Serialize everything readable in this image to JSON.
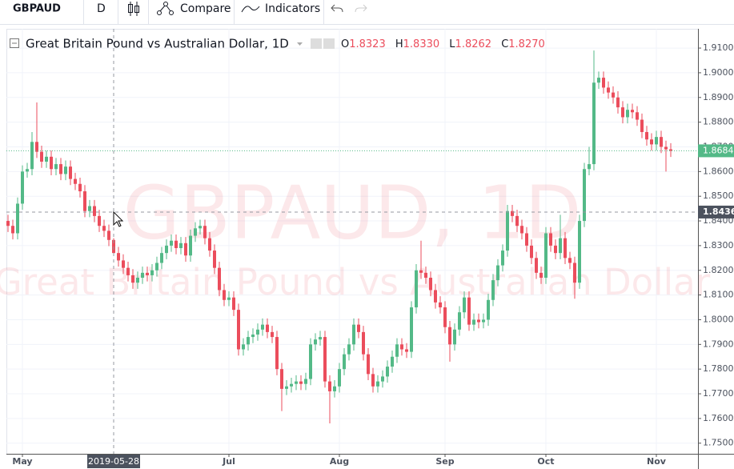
{
  "toolbar": {
    "symbol": "GBPAUD",
    "interval": "D",
    "compare": "Compare",
    "indicators": "Indicators"
  },
  "legend": {
    "title": "Great Britain Pound vs Australian Dollar, 1D",
    "open_label": "O",
    "open": "1.8323",
    "high_label": "H",
    "high": "1.8330",
    "low_label": "L",
    "low": "1.8262",
    "close_label": "C",
    "close": "1.8270"
  },
  "watermark": {
    "line1": "GBPAUD, 1D",
    "line2": "Great Britain Pound vs Australian Dollar"
  },
  "chart_data": {
    "type": "candlestick",
    "x": [
      "2019-04-26",
      "2019-04-29",
      "2019-04-30",
      "2019-05-01",
      "2019-05-02",
      "2019-05-03",
      "2019-05-06",
      "2019-05-07",
      "2019-05-08",
      "2019-05-09",
      "2019-05-10",
      "2019-05-13",
      "2019-05-14",
      "2019-05-15",
      "2019-05-16",
      "2019-05-17",
      "2019-05-20",
      "2019-05-21",
      "2019-05-22",
      "2019-05-23",
      "2019-05-24",
      "2019-05-27",
      "2019-05-28",
      "2019-05-29",
      "2019-05-30",
      "2019-05-31",
      "2019-06-03",
      "2019-06-04",
      "2019-06-05",
      "2019-06-06",
      "2019-06-07",
      "2019-06-10",
      "2019-06-11",
      "2019-06-12",
      "2019-06-13",
      "2019-06-14",
      "2019-06-17",
      "2019-06-18",
      "2019-06-19",
      "2019-06-20",
      "2019-06-21",
      "2019-06-24",
      "2019-06-25",
      "2019-06-26",
      "2019-06-27",
      "2019-06-28",
      "2019-07-01",
      "2019-07-02",
      "2019-07-03",
      "2019-07-04",
      "2019-07-05",
      "2019-07-08",
      "2019-07-09",
      "2019-07-10",
      "2019-07-11",
      "2019-07-12",
      "2019-07-15",
      "2019-07-16",
      "2019-07-17",
      "2019-07-18",
      "2019-07-19",
      "2019-07-22",
      "2019-07-23",
      "2019-07-24",
      "2019-07-25",
      "2019-07-26",
      "2019-07-29",
      "2019-07-30",
      "2019-07-31",
      "2019-08-01",
      "2019-08-02",
      "2019-08-05",
      "2019-08-06",
      "2019-08-07",
      "2019-08-08",
      "2019-08-09",
      "2019-08-12",
      "2019-08-13",
      "2019-08-14",
      "2019-08-15",
      "2019-08-16",
      "2019-08-19",
      "2019-08-20",
      "2019-08-21",
      "2019-08-22",
      "2019-08-23",
      "2019-08-26",
      "2019-08-27",
      "2019-08-28",
      "2019-08-29",
      "2019-08-30",
      "2019-09-02",
      "2019-09-03",
      "2019-09-04",
      "2019-09-05",
      "2019-09-06",
      "2019-09-09",
      "2019-09-10",
      "2019-09-11",
      "2019-09-12",
      "2019-09-13",
      "2019-09-16",
      "2019-09-17",
      "2019-09-18",
      "2019-09-19",
      "2019-09-20",
      "2019-09-23",
      "2019-09-24",
      "2019-09-25",
      "2019-09-26",
      "2019-09-27",
      "2019-09-30",
      "2019-10-01",
      "2019-10-02",
      "2019-10-03",
      "2019-10-04",
      "2019-10-07",
      "2019-10-08",
      "2019-10-09",
      "2019-10-10",
      "2019-10-11",
      "2019-10-14",
      "2019-10-15",
      "2019-10-16",
      "2019-10-17",
      "2019-10-18",
      "2019-10-21",
      "2019-10-22",
      "2019-10-23",
      "2019-10-24",
      "2019-10-25",
      "2019-10-28",
      "2019-10-29",
      "2019-10-30",
      "2019-10-31",
      "2019-11-01",
      "2019-11-04",
      "2019-11-05",
      "2019-11-06"
    ],
    "open": [
      1.84,
      1.838,
      1.835,
      1.847,
      1.86,
      1.861,
      1.872,
      1.868,
      1.864,
      1.866,
      1.861,
      1.863,
      1.859,
      1.862,
      1.857,
      1.855,
      1.852,
      1.844,
      1.846,
      1.842,
      1.838,
      1.836,
      1.8323,
      1.827,
      1.824,
      1.821,
      1.818,
      1.815,
      1.817,
      1.819,
      1.818,
      1.82,
      1.823,
      1.827,
      1.83,
      1.832,
      1.829,
      1.831,
      1.826,
      1.834,
      1.837,
      1.838,
      1.833,
      1.828,
      1.821,
      1.812,
      1.808,
      1.809,
      1.804,
      1.788,
      1.79,
      1.793,
      1.794,
      1.796,
      1.798,
      1.795,
      1.793,
      1.78,
      1.772,
      1.773,
      1.774,
      1.775,
      1.774,
      1.776,
      1.79,
      1.792,
      1.793,
      1.775,
      1.771,
      1.773,
      1.78,
      1.786,
      1.79,
      1.798,
      1.795,
      1.786,
      1.778,
      1.773,
      1.775,
      1.777,
      1.781,
      1.785,
      1.79,
      1.788,
      1.787,
      1.805,
      1.82,
      1.819,
      1.817,
      1.812,
      1.807,
      1.805,
      1.797,
      1.79,
      1.796,
      1.803,
      1.809,
      1.798,
      1.8,
      1.799,
      1.8,
      1.808,
      1.816,
      1.822,
      1.828,
      1.844,
      1.842,
      1.838,
      1.835,
      1.83,
      1.825,
      1.819,
      1.817,
      1.835,
      1.83,
      1.827,
      1.833,
      1.825,
      1.823,
      1.815,
      1.84,
      1.861,
      1.863,
      1.896,
      1.898,
      1.894,
      1.892,
      1.89,
      1.886,
      1.882,
      1.885,
      1.884,
      1.881,
      1.876,
      1.873,
      1.871,
      1.874,
      1.87,
      1.869
    ],
    "high": [
      1.8425,
      1.8405,
      1.8495,
      1.8625,
      1.8635,
      1.876,
      1.888,
      1.8705,
      1.8685,
      1.8685,
      1.8655,
      1.8655,
      1.8645,
      1.8645,
      1.8595,
      1.8575,
      1.8545,
      1.8485,
      1.8485,
      1.8445,
      1.8405,
      1.8385,
      1.833,
      1.8295,
      1.8265,
      1.8235,
      1.8205,
      1.8195,
      1.8215,
      1.8215,
      1.8225,
      1.8255,
      1.8295,
      1.8325,
      1.8345,
      1.8345,
      1.8335,
      1.8335,
      1.8365,
      1.8395,
      1.8405,
      1.8405,
      1.8355,
      1.8305,
      1.8235,
      1.8145,
      1.8115,
      1.8115,
      1.8065,
      1.7925,
      1.7955,
      1.7965,
      1.7985,
      1.8005,
      1.8005,
      1.7975,
      1.7955,
      1.7825,
      1.7755,
      1.7765,
      1.7775,
      1.7775,
      1.7785,
      1.7925,
      1.7945,
      1.7955,
      1.7955,
      1.7775,
      1.7755,
      1.7825,
      1.7885,
      1.7925,
      1.8005,
      1.8005,
      1.7975,
      1.7885,
      1.7805,
      1.7775,
      1.7795,
      1.7835,
      1.7875,
      1.7925,
      1.7925,
      1.7905,
      1.8075,
      1.8225,
      1.832,
      1.8215,
      1.8195,
      1.8145,
      1.8095,
      1.8075,
      1.7995,
      1.7985,
      1.8055,
      1.8115,
      1.8115,
      1.8025,
      1.8025,
      1.8025,
      1.8105,
      1.8185,
      1.8245,
      1.8305,
      1.8465,
      1.8465,
      1.8445,
      1.8405,
      1.8375,
      1.8325,
      1.8275,
      1.8215,
      1.8375,
      1.8375,
      1.8325,
      1.8425,
      1.8355,
      1.8275,
      1.8255,
      1.8425,
      1.8635,
      1.87,
      1.909,
      1.9005,
      1.9005,
      1.8965,
      1.8945,
      1.8925,
      1.8885,
      1.8875,
      1.8875,
      1.8865,
      1.8835,
      1.8785,
      1.8755,
      1.8765,
      1.8765,
      1.8725,
      1.8715
    ],
    "low": [
      1.8355,
      1.8325,
      1.8325,
      1.8445,
      1.8575,
      1.8585,
      1.8655,
      1.8615,
      1.8615,
      1.8585,
      1.8585,
      1.8565,
      1.8565,
      1.8545,
      1.8525,
      1.8495,
      1.8415,
      1.8415,
      1.8395,
      1.8355,
      1.8335,
      1.8298,
      1.8262,
      1.8215,
      1.8185,
      1.8155,
      1.8125,
      1.8125,
      1.8145,
      1.8155,
      1.8155,
      1.8175,
      1.8205,
      1.8245,
      1.8275,
      1.8265,
      1.8265,
      1.8235,
      1.8235,
      1.8315,
      1.8345,
      1.8305,
      1.8255,
      1.8185,
      1.8095,
      1.8055,
      1.8055,
      1.8015,
      1.7855,
      1.7855,
      1.7875,
      1.7905,
      1.7915,
      1.7935,
      1.7925,
      1.7905,
      1.7775,
      1.763,
      1.7695,
      1.7705,
      1.7715,
      1.7715,
      1.7715,
      1.7735,
      1.7875,
      1.7895,
      1.7725,
      1.758,
      1.7685,
      1.7705,
      1.7775,
      1.7835,
      1.7875,
      1.7925,
      1.7835,
      1.7755,
      1.7705,
      1.7705,
      1.7725,
      1.7745,
      1.7785,
      1.7825,
      1.7855,
      1.7845,
      1.7845,
      1.8025,
      1.8165,
      1.8145,
      1.8095,
      1.8045,
      1.8025,
      1.7945,
      1.783,
      1.7875,
      1.7935,
      1.8005,
      1.7955,
      1.7955,
      1.7965,
      1.7965,
      1.7975,
      1.8055,
      1.8135,
      1.8195,
      1.8255,
      1.8395,
      1.8355,
      1.8325,
      1.8275,
      1.8225,
      1.8165,
      1.8145,
      1.8145,
      1.8275,
      1.8245,
      1.8245,
      1.8225,
      1.8205,
      1.8085,
      1.8125,
      1.8375,
      1.8585,
      1.8605,
      1.8935,
      1.8915,
      1.8895,
      1.8875,
      1.8835,
      1.8795,
      1.8795,
      1.8815,
      1.8785,
      1.8735,
      1.8705,
      1.8685,
      1.8685,
      1.8675,
      1.86,
      1.8659
    ],
    "close": [
      1.838,
      1.835,
      1.847,
      1.86,
      1.861,
      1.872,
      1.868,
      1.864,
      1.866,
      1.861,
      1.863,
      1.859,
      1.862,
      1.857,
      1.855,
      1.852,
      1.844,
      1.846,
      1.842,
      1.838,
      1.836,
      1.8323,
      1.827,
      1.824,
      1.821,
      1.818,
      1.815,
      1.817,
      1.819,
      1.818,
      1.82,
      1.823,
      1.827,
      1.83,
      1.832,
      1.829,
      1.831,
      1.826,
      1.834,
      1.837,
      1.838,
      1.833,
      1.828,
      1.821,
      1.812,
      1.808,
      1.809,
      1.804,
      1.788,
      1.79,
      1.793,
      1.794,
      1.796,
      1.798,
      1.795,
      1.793,
      1.78,
      1.772,
      1.773,
      1.774,
      1.775,
      1.774,
      1.776,
      1.79,
      1.792,
      1.793,
      1.775,
      1.771,
      1.773,
      1.78,
      1.786,
      1.79,
      1.798,
      1.795,
      1.786,
      1.778,
      1.773,
      1.775,
      1.777,
      1.781,
      1.785,
      1.79,
      1.788,
      1.787,
      1.805,
      1.82,
      1.819,
      1.817,
      1.812,
      1.807,
      1.805,
      1.797,
      1.79,
      1.796,
      1.803,
      1.809,
      1.798,
      1.8,
      1.799,
      1.8,
      1.808,
      1.816,
      1.822,
      1.828,
      1.844,
      1.842,
      1.838,
      1.835,
      1.83,
      1.825,
      1.819,
      1.817,
      1.835,
      1.83,
      1.827,
      1.833,
      1.825,
      1.823,
      1.815,
      1.84,
      1.861,
      1.863,
      1.896,
      1.898,
      1.894,
      1.892,
      1.89,
      1.886,
      1.882,
      1.885,
      1.884,
      1.881,
      1.876,
      1.873,
      1.871,
      1.874,
      1.87,
      1.869,
      1.8684
    ],
    "up_color": "#53b987",
    "down_color": "#eb4d5c",
    "ylim": [
      1.7457,
      1.9178
    ],
    "yticks": [
      {
        "value": 1.75,
        "label": "1.7500"
      },
      {
        "value": 1.76,
        "label": "1.7600"
      },
      {
        "value": 1.77,
        "label": "1.7700"
      },
      {
        "value": 1.78,
        "label": "1.7800"
      },
      {
        "value": 1.79,
        "label": "1.7900"
      },
      {
        "value": 1.8,
        "label": "1.8000"
      },
      {
        "value": 1.81,
        "label": "1.8100"
      },
      {
        "value": 1.82,
        "label": "1.8200"
      },
      {
        "value": 1.83,
        "label": "1.8300"
      },
      {
        "value": 1.84,
        "label": "1.8400"
      },
      {
        "value": 1.85,
        "label": "1.8500"
      },
      {
        "value": 1.86,
        "label": "1.8600"
      },
      {
        "value": 1.87,
        "label": "1.8700"
      },
      {
        "value": 1.88,
        "label": "1.8800"
      },
      {
        "value": 1.89,
        "label": "1.8900"
      },
      {
        "value": 1.9,
        "label": "1.9000"
      },
      {
        "value": 1.91,
        "label": "1.9100"
      }
    ],
    "xticks": [
      {
        "value": "2019-05-01",
        "label": "May"
      },
      {
        "value": "2019-07-01",
        "label": "Jul"
      },
      {
        "value": "2019-08-01",
        "label": "Aug"
      },
      {
        "value": "2019-09-02",
        "label": "Sep"
      },
      {
        "value": "2019-10-01",
        "label": "Oct"
      },
      {
        "value": "2019-11-01",
        "label": "Nov"
      }
    ],
    "grid": true,
    "last_price": 1.8684,
    "last_price_color": "#53b987",
    "crosshair": {
      "x": "2019-05-28",
      "y": 1.8436
    }
  }
}
